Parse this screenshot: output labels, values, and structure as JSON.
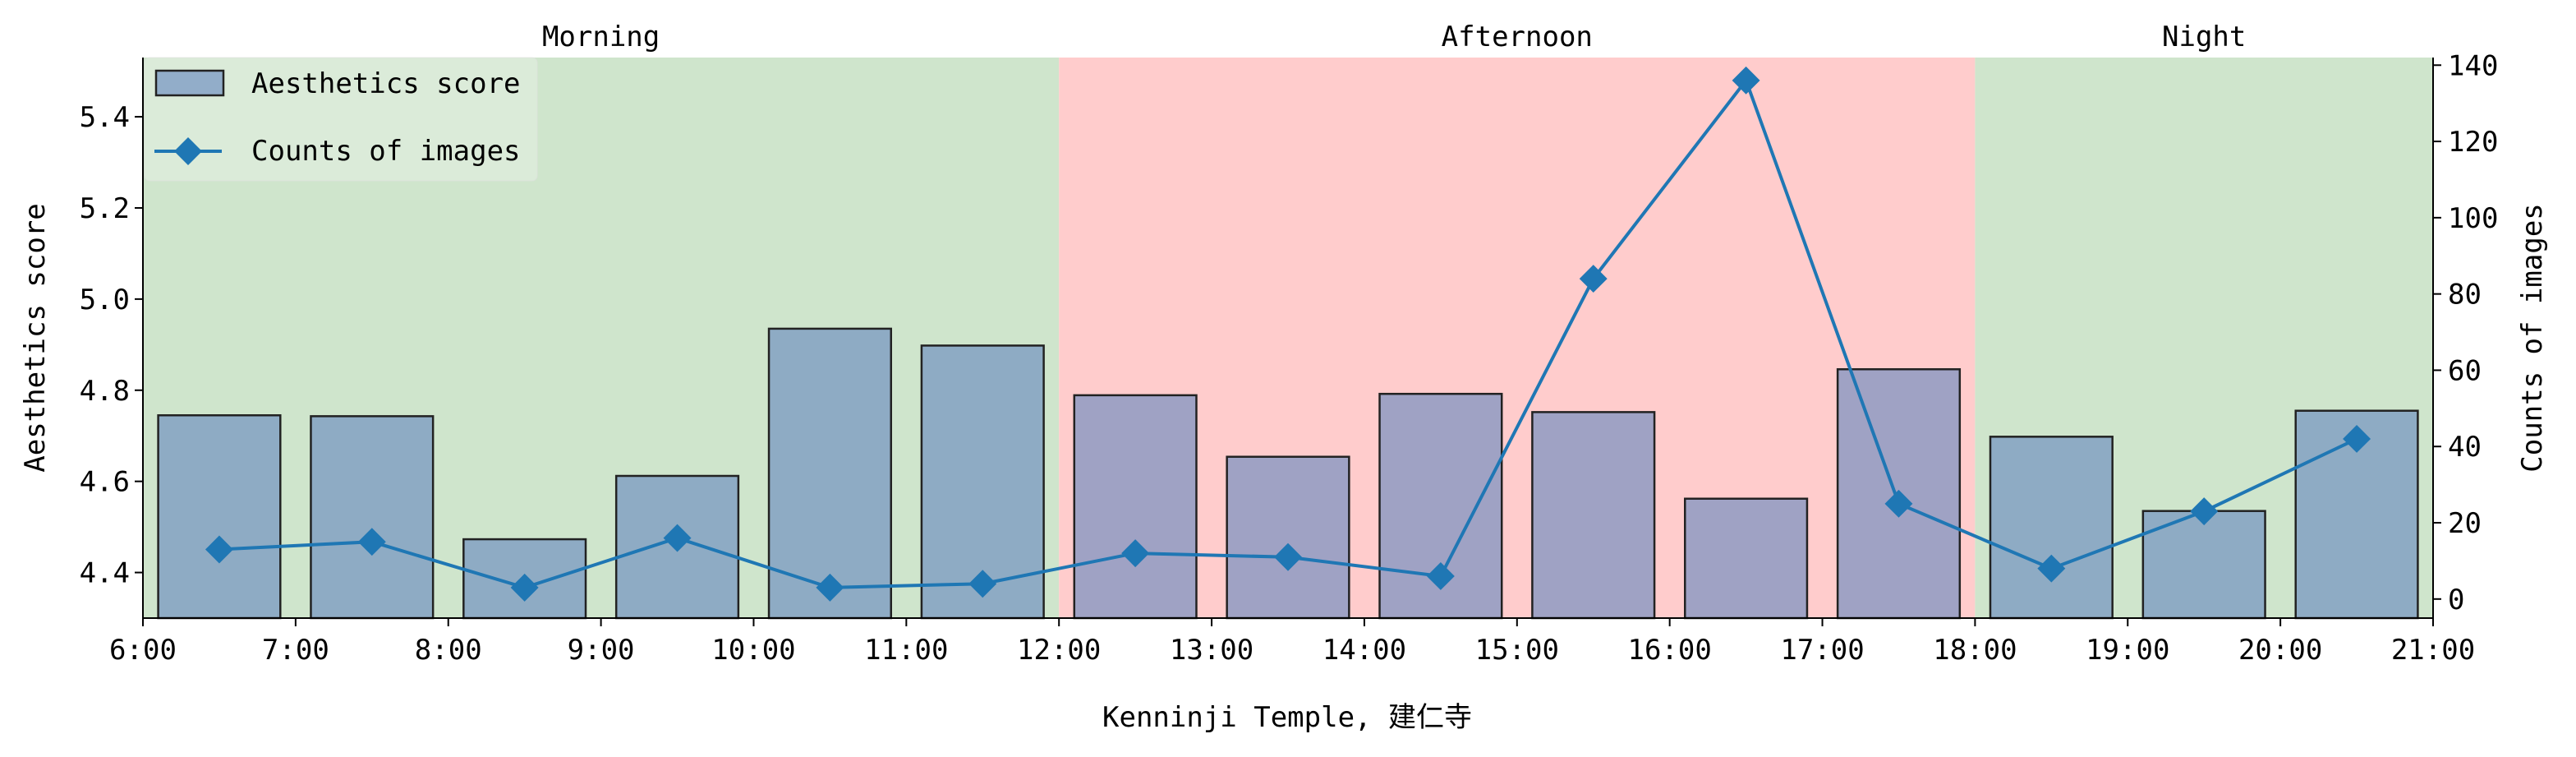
{
  "chart_data": {
    "type": "bar+line",
    "xlabel": "Kenninji Temple, 建仁寺",
    "x_ticks": [
      "6:00",
      "7:00",
      "8:00",
      "9:00",
      "10:00",
      "11:00",
      "12:00",
      "13:00",
      "14:00",
      "15:00",
      "16:00",
      "17:00",
      "18:00",
      "19:00",
      "20:00",
      "21:00"
    ],
    "xlim": [
      6,
      21
    ],
    "x_centers": [
      6.5,
      7.5,
      8.5,
      9.5,
      10.5,
      11.5,
      12.5,
      13.5,
      14.5,
      15.5,
      16.5,
      17.5,
      18.5,
      19.5,
      20.5
    ],
    "periods": [
      {
        "label": "Morning",
        "start": 6,
        "end": 12,
        "color": "#cfe5cc"
      },
      {
        "label": "Afternoon",
        "start": 12,
        "end": 18,
        "color": "#ffcccc"
      },
      {
        "label": "Night",
        "start": 18,
        "end": 21,
        "color": "#cfe5cc"
      }
    ],
    "left_axis": {
      "label": "Aesthetics score",
      "ylim": [
        4.3,
        5.53
      ],
      "ticks": [
        "4.4",
        "4.6",
        "4.8",
        "5.0",
        "5.2",
        "5.4"
      ]
    },
    "right_axis": {
      "label": "Counts of images",
      "ylim": [
        -5,
        142
      ],
      "ticks": [
        "0",
        "20",
        "40",
        "60",
        "80",
        "100",
        "120",
        "140"
      ]
    },
    "series": [
      {
        "name": "Aesthetics score",
        "kind": "bar",
        "axis": "left",
        "color": "#6b8cc0",
        "values": [
          4.745,
          4.743,
          4.473,
          4.612,
          4.935,
          4.898,
          4.789,
          4.654,
          4.792,
          4.752,
          4.562,
          4.846,
          4.698,
          4.535,
          4.755
        ]
      },
      {
        "name": "Counts of images",
        "kind": "line",
        "axis": "right",
        "color": "#1f77b4",
        "values": [
          13,
          15,
          3,
          16,
          3,
          4,
          12,
          11,
          6,
          84,
          136,
          25,
          8,
          23,
          42
        ]
      }
    ],
    "legend": "top-left"
  }
}
